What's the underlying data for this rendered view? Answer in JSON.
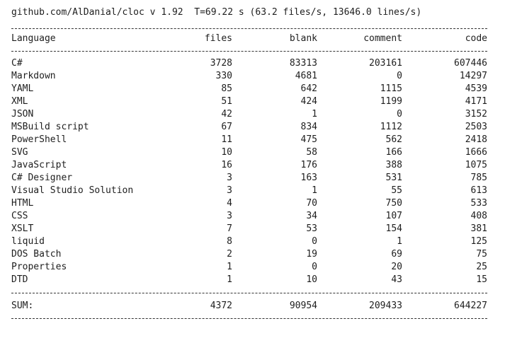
{
  "header": "github.com/AlDanial/cloc v 1.92  T=69.22 s (63.2 files/s, 13646.0 lines/s)",
  "table": {
    "columns": [
      "Language",
      "files",
      "blank",
      "comment",
      "code"
    ],
    "rows": [
      [
        "C#",
        3728,
        83313,
        203161,
        607446
      ],
      [
        "Markdown",
        330,
        4681,
        0,
        14297
      ],
      [
        "YAML",
        85,
        642,
        1115,
        4539
      ],
      [
        "XML",
        51,
        424,
        1199,
        4171
      ],
      [
        "JSON",
        42,
        1,
        0,
        3152
      ],
      [
        "MSBuild script",
        67,
        834,
        1112,
        2503
      ],
      [
        "PowerShell",
        11,
        475,
        562,
        2418
      ],
      [
        "SVG",
        10,
        58,
        166,
        1666
      ],
      [
        "JavaScript",
        16,
        176,
        388,
        1075
      ],
      [
        "C# Designer",
        3,
        163,
        531,
        785
      ],
      [
        "Visual Studio Solution",
        3,
        1,
        55,
        613
      ],
      [
        "HTML",
        4,
        70,
        750,
        533
      ],
      [
        "CSS",
        3,
        34,
        107,
        408
      ],
      [
        "XSLT",
        7,
        53,
        154,
        381
      ],
      [
        "liquid",
        8,
        0,
        1,
        125
      ],
      [
        "DOS Batch",
        2,
        19,
        69,
        75
      ],
      [
        "Properties",
        1,
        0,
        20,
        25
      ],
      [
        "DTD",
        1,
        10,
        43,
        15
      ]
    ],
    "sum": [
      "SUM:",
      4372,
      90954,
      209433,
      644227
    ]
  }
}
